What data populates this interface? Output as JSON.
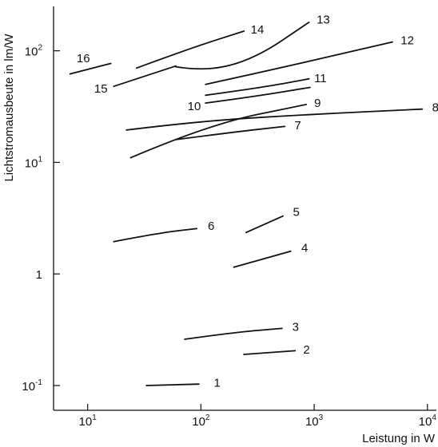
{
  "chart_data": {
    "type": "line",
    "title": "",
    "xlabel": "Leistung in W",
    "ylabel": "Lichtstromausbeute in lm/W",
    "xscale": "log",
    "yscale": "log",
    "xlim": [
      5,
      12000
    ],
    "ylim": [
      0.06,
      250
    ],
    "grid": false,
    "legend": "none",
    "line_color": "#111111",
    "xticks": [
      {
        "value": 10,
        "base": "10",
        "exp": "1"
      },
      {
        "value": 100,
        "base": "10",
        "exp": "2"
      },
      {
        "value": 1000,
        "base": "10",
        "exp": "3"
      },
      {
        "value": 10000,
        "base": "10",
        "exp": "4"
      }
    ],
    "yticks": [
      {
        "value": 0.1,
        "base": "10",
        "exp": "-1"
      },
      {
        "value": 1,
        "base": "1",
        "exp": ""
      },
      {
        "value": 10,
        "base": "10",
        "exp": "1"
      },
      {
        "value": 100,
        "base": "10",
        "exp": "2"
      }
    ],
    "series": [
      {
        "name": "1",
        "x": [
          33,
          96
        ],
        "y": [
          0.1,
          0.103
        ]
      },
      {
        "name": "2",
        "x": [
          240,
          680
        ],
        "y": [
          0.19,
          0.205
        ]
      },
      {
        "name": "3",
        "x": [
          72,
          200,
          520
        ],
        "y": [
          0.26,
          0.3,
          0.325
        ]
      },
      {
        "name": "4",
        "x": [
          195,
          620
        ],
        "y": [
          1.15,
          1.6
        ]
      },
      {
        "name": "5",
        "x": [
          250,
          530
        ],
        "y": [
          2.35,
          3.3
        ]
      },
      {
        "name": "6",
        "x": [
          17,
          45,
          92
        ],
        "y": [
          1.95,
          2.35,
          2.55
        ]
      },
      {
        "name": "7",
        "x": [
          60,
          180,
          550
        ],
        "y": [
          16,
          18.5,
          21
        ]
      },
      {
        "name": "8",
        "x": [
          22,
          100,
          1000,
          9000
        ],
        "y": [
          19.5,
          23.5,
          27,
          30
        ]
      },
      {
        "name": "9",
        "x": [
          24,
          120,
          850
        ],
        "y": [
          11,
          22,
          33
        ]
      },
      {
        "name": "10",
        "x": [
          110,
          300,
          920
        ],
        "y": [
          34,
          39,
          47
        ]
      },
      {
        "name": "11",
        "x": [
          110,
          350,
          900
        ],
        "y": [
          40,
          47,
          56
        ]
      },
      {
        "name": "12",
        "x": [
          110,
          500,
          4900
        ],
        "y": [
          50,
          70,
          120
        ]
      },
      {
        "name": "13",
        "x": [
          60,
          110,
          300,
          900
        ],
        "y": [
          72,
          65,
          85,
          180
        ]
      },
      {
        "name": "14",
        "x": [
          27,
          80,
          240
        ],
        "y": [
          70,
          105,
          150
        ]
      },
      {
        "name": "15",
        "x": [
          17,
          60
        ],
        "y": [
          48,
          73
        ]
      },
      {
        "name": "16",
        "x": [
          7,
          16
        ],
        "y": [
          62,
          77
        ]
      }
    ],
    "labels": [
      {
        "text": "1",
        "x": 130,
        "y": 0.106,
        "anchor": "start"
      },
      {
        "text": "2",
        "x": 800,
        "y": 0.21,
        "anchor": "start"
      },
      {
        "text": "3",
        "x": 640,
        "y": 0.335,
        "anchor": "start"
      },
      {
        "text": "4",
        "x": 770,
        "y": 1.72,
        "anchor": "start"
      },
      {
        "text": "5",
        "x": 650,
        "y": 3.6,
        "anchor": "start"
      },
      {
        "text": "6",
        "x": 115,
        "y": 2.7,
        "anchor": "start"
      },
      {
        "text": "7",
        "x": 670,
        "y": 21.5,
        "anchor": "start"
      },
      {
        "text": "8",
        "x": 11000,
        "y": 31,
        "anchor": "start"
      },
      {
        "text": "9",
        "x": 1000,
        "y": 34,
        "anchor": "start"
      },
      {
        "text": "10",
        "x": 100,
        "y": 32,
        "anchor": "end"
      },
      {
        "text": "11",
        "x": 1000,
        "y": 57,
        "anchor": "start"
      },
      {
        "text": "12",
        "x": 5800,
        "y": 124,
        "anchor": "start"
      },
      {
        "text": "13",
        "x": 1050,
        "y": 190,
        "anchor": "start"
      },
      {
        "text": "14",
        "x": 275,
        "y": 155,
        "anchor": "start"
      },
      {
        "text": "15",
        "x": 15,
        "y": 46,
        "anchor": "end"
      },
      {
        "text": "16",
        "x": 8,
        "y": 86,
        "anchor": "start"
      }
    ]
  }
}
